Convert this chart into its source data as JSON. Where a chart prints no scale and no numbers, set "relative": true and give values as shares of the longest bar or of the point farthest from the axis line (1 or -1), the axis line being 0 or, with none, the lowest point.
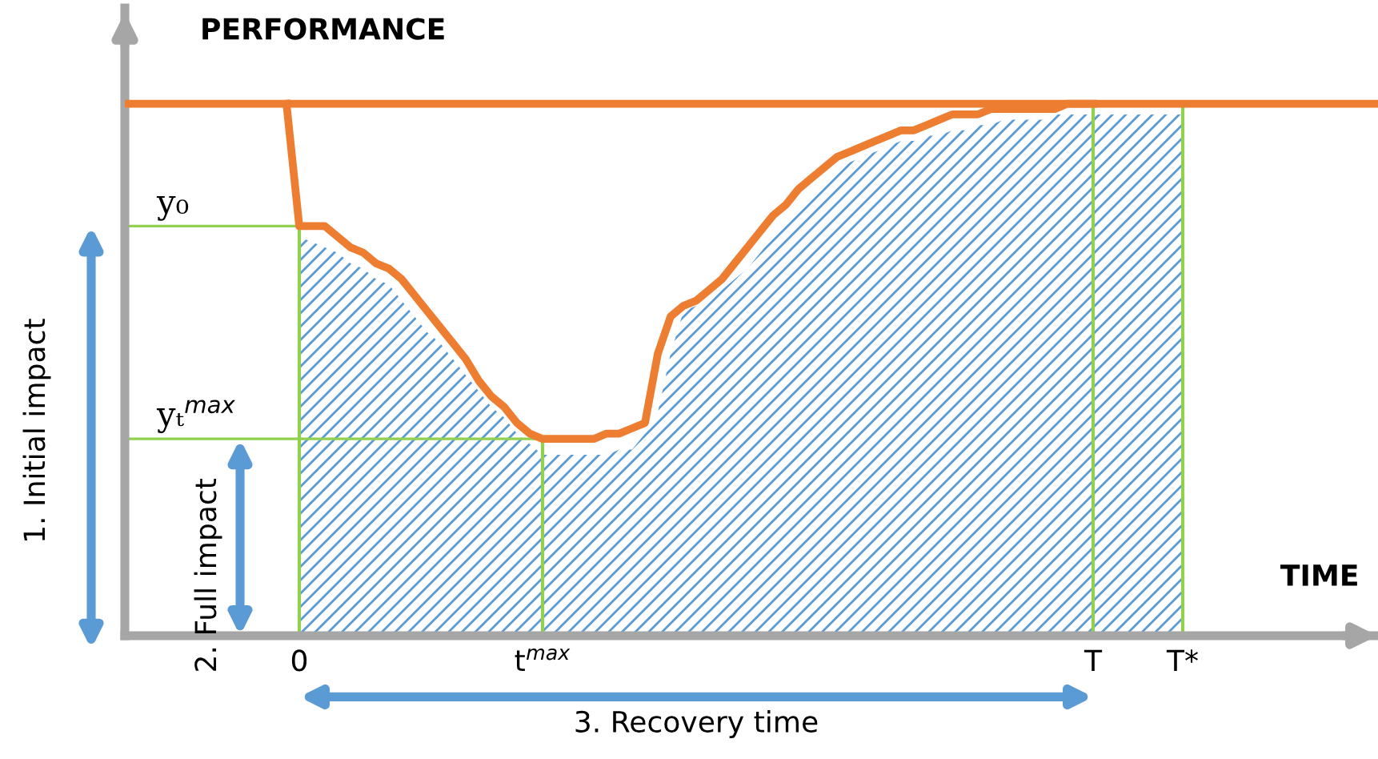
{
  "chart_data": {
    "type": "line",
    "relative": true,
    "xlabel": "TIME",
    "ylabel": "PERFORMANCE",
    "categories": [
      null,
      "0",
      null,
      null,
      null,
      null,
      null,
      null,
      null,
      null,
      null,
      null,
      null,
      null,
      null,
      null,
      null,
      null,
      null,
      null,
      "t$^{max}$",
      null,
      null,
      null,
      null,
      null,
      null,
      null,
      null,
      null,
      null,
      null,
      null,
      null,
      null,
      null,
      null,
      null,
      null,
      null,
      null,
      null,
      null,
      null,
      null,
      null,
      null,
      null,
      null,
      null,
      null,
      null,
      null,
      null,
      null,
      null,
      null,
      null,
      null,
      null,
      null,
      null,
      null,
      "T",
      null,
      null,
      null,
      null,
      null,
      null,
      "T*"
    ],
    "series": [
      {
        "type": "area",
        "color": "#5b9bd5",
        "values": [
          null,
          0.75,
          0.74,
          0.73,
          0.72,
          0.7,
          0.69,
          0.67,
          0.66,
          0.63,
          0.6,
          0.57,
          0.55,
          0.52,
          0.49,
          0.46,
          0.43,
          0.41,
          0.38,
          0.36,
          0.34,
          0.34,
          0.34,
          0.34,
          0.34,
          0.34,
          0.35,
          0.35,
          0.38,
          0.42,
          0.53,
          0.61,
          0.62,
          0.64,
          0.65,
          0.67,
          0.69,
          0.72,
          0.75,
          0.78,
          0.81,
          0.83,
          0.85,
          0.87,
          0.89,
          0.9,
          0.91,
          0.92,
          0.93,
          0.93,
          0.94,
          0.94,
          0.95,
          0.95,
          0.96,
          0.96,
          0.97,
          0.97,
          0.97,
          0.97,
          0.98,
          0.98,
          0.98,
          0.98,
          0.98,
          0.98,
          0.98,
          0.98,
          0.98,
          0.98,
          0.98
        ]
      },
      {
        "color": "#ed7d31",
        "values": [
          1,
          0.77,
          0.77,
          0.77,
          0.75,
          0.73,
          0.72,
          0.7,
          0.69,
          0.67,
          0.64,
          0.61,
          0.58,
          0.55,
          0.52,
          0.48,
          0.45,
          0.43,
          0.4,
          0.38,
          0.37,
          0.37,
          0.37,
          0.37,
          0.37,
          0.38,
          0.38,
          0.39,
          0.4,
          0.53,
          0.6,
          0.62,
          0.63,
          0.65,
          0.67,
          0.7,
          0.73,
          0.76,
          0.79,
          0.81,
          0.84,
          0.86,
          0.88,
          0.9,
          0.91,
          0.92,
          0.93,
          0.94,
          0.95,
          0.95,
          0.96,
          0.97,
          0.98,
          0.98,
          0.98,
          0.99,
          0.99,
          0.99,
          0.99,
          0.99,
          0.99,
          1.0,
          1.0,
          1.0,
          null,
          null,
          null,
          null,
          null,
          null,
          null
        ]
      }
    ],
    "ref_lines": [
      {
        "axis": "y",
        "value": 1,
        "color": "#ed7d31"
      },
      {
        "axis": "y",
        "value": 0.77,
        "label": "y₀",
        "color": "#92d050"
      },
      {
        "axis": "y",
        "value": 0.37,
        "label": "yₜ$^{max}$",
        "color": "#92d050"
      },
      {
        "axis": "x",
        "value": "0",
        "color": "#92d050"
      },
      {
        "axis": "x",
        "value": "t$^{max}$",
        "color": "#92d050"
      },
      {
        "axis": "x",
        "value": "T",
        "color": "#92d050"
      },
      {
        "axis": "x",
        "value": "T*",
        "color": "#92d050"
      }
    ],
    "annotations": [
      "1. Initial impact",
      "2. Full impact",
      "3. Recovery time"
    ],
    "grid": false,
    "legend": false,
    "marker": "none",
    "line_style": "solid"
  }
}
